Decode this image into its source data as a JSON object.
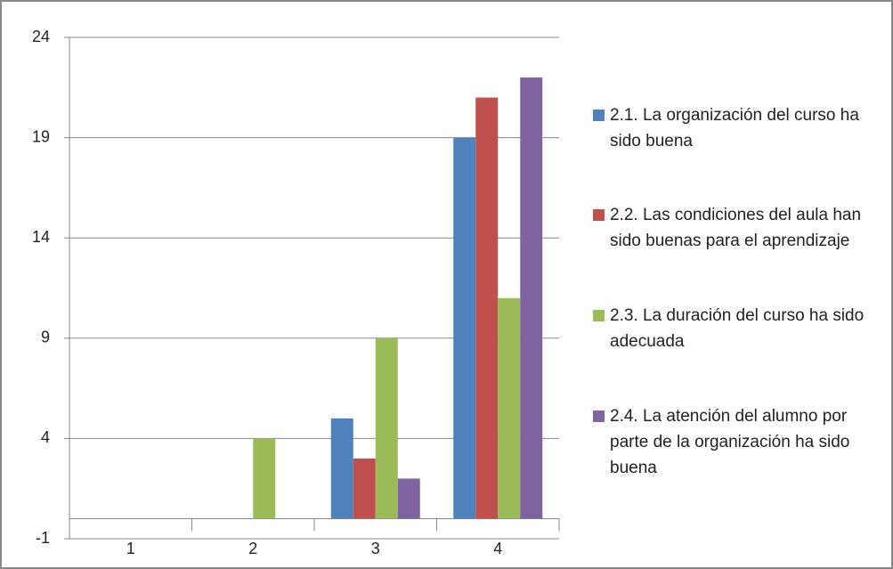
{
  "chart_data": {
    "type": "bar",
    "categories": [
      "1",
      "2",
      "3",
      "4"
    ],
    "series": [
      {
        "name": "2.1. La organización del curso ha sido buena",
        "color": "#4f81bd",
        "values": [
          0,
          0,
          5,
          19
        ]
      },
      {
        "name": "2.2. Las condiciones del aula han sido buenas para el aprendizaje",
        "color": "#c0504d",
        "values": [
          0,
          0,
          3,
          21
        ]
      },
      {
        "name": "2.3. La duración del curso ha sido adecuada",
        "color": "#9bbb59",
        "values": [
          0,
          4,
          9,
          11
        ]
      },
      {
        "name": "2.4. La atención del alumno por parte de la organización ha sido buena",
        "color": "#8064a2",
        "values": [
          0,
          0,
          2,
          22
        ]
      }
    ],
    "ylim": [
      -1,
      24
    ],
    "yticks": [
      -1,
      4,
      9,
      14,
      19,
      24
    ],
    "grid": true,
    "legend": "right"
  }
}
